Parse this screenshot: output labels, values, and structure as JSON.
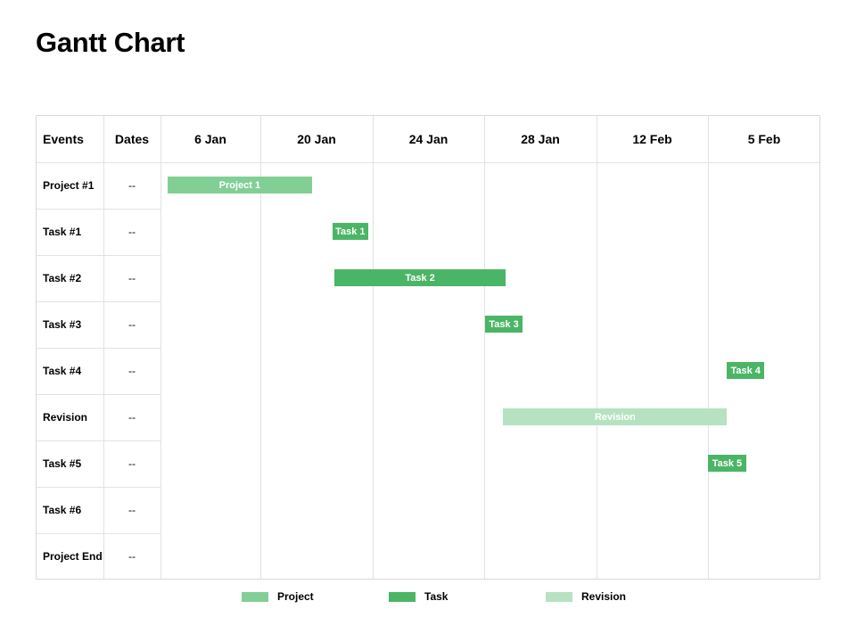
{
  "page": {
    "title": "Gantt Chart"
  },
  "chart_data": {
    "type": "gantt",
    "columns": {
      "events": "Events",
      "dates": "Dates"
    },
    "timeline": [
      "6 Jan",
      "20 Jan",
      "24 Jan",
      "28 Jan",
      "12 Feb",
      "5 Feb"
    ],
    "rows": [
      {
        "event": "Project #1",
        "dates": "--"
      },
      {
        "event": "Task #1",
        "dates": "--"
      },
      {
        "event": "Task #2",
        "dates": "--"
      },
      {
        "event": "Task #3",
        "dates": "--"
      },
      {
        "event": "Task #4",
        "dates": "--"
      },
      {
        "event": "Revision",
        "dates": "--"
      },
      {
        "event": "Task #5",
        "dates": "--"
      },
      {
        "event": "Task #6",
        "dates": "--"
      },
      {
        "event": "Project End",
        "dates": "--"
      }
    ],
    "bars": [
      {
        "row": 0,
        "label": "Project 1",
        "category": "Project",
        "start": 0.07,
        "end": 1.46
      },
      {
        "row": 1,
        "label": "Task 1",
        "category": "Task",
        "start": 1.64,
        "end": 1.96
      },
      {
        "row": 2,
        "label": "Task 2",
        "category": "Task",
        "start": 1.66,
        "end": 3.19
      },
      {
        "row": 3,
        "label": "Task 3",
        "category": "Task",
        "start": 3.01,
        "end": 3.34
      },
      {
        "row": 4,
        "label": "Task 4",
        "category": "Task",
        "start": 5.17,
        "end": 5.5
      },
      {
        "row": 5,
        "label": "Revision",
        "category": "Revision",
        "start": 3.17,
        "end": 5.17
      },
      {
        "row": 6,
        "label": "Task 5",
        "category": "Task",
        "start": 5.0,
        "end": 5.34
      }
    ],
    "legend": [
      {
        "name": "Project",
        "color": "#82cf96"
      },
      {
        "name": "Task",
        "color": "#4bb566"
      },
      {
        "name": "Revision",
        "color": "#b6e2c2"
      }
    ],
    "legend_position": "bottom"
  }
}
